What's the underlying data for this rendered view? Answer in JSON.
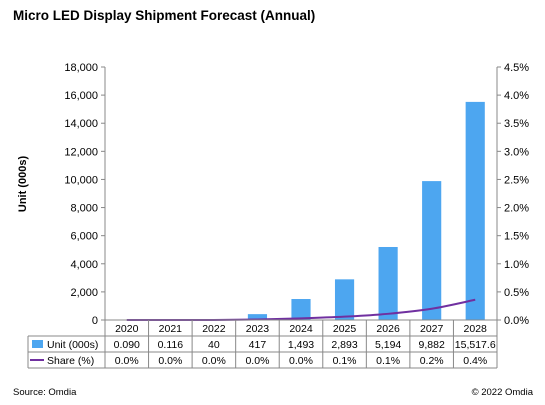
{
  "title": "Micro LED Display Shipment Forecast (Annual)",
  "source": "Source: Omdia",
  "copyright": "© 2022 Omdia",
  "chart_data": {
    "type": "bar",
    "title": "Micro LED Display Shipment Forecast (Annual)",
    "ylabel": "Unit (000s)",
    "categories": [
      "2020",
      "2021",
      "2022",
      "2023",
      "2024",
      "2025",
      "2026",
      "2027",
      "2028"
    ],
    "ylim": [
      0,
      18000
    ],
    "y_ticks": [
      "0",
      "2,000",
      "4,000",
      "6,000",
      "8,000",
      "10,000",
      "12,000",
      "14,000",
      "16,000",
      "18,000"
    ],
    "y2lim": [
      0,
      4.5
    ],
    "y2_ticks": [
      "0.0%",
      "0.5%",
      "1.0%",
      "1.5%",
      "2.0%",
      "2.5%",
      "3.0%",
      "3.5%",
      "4.0%",
      "4.5%"
    ],
    "grid": false,
    "legend": "table-below",
    "series": [
      {
        "name": "Unit (000s)",
        "type": "bar",
        "color": "#4da6f0",
        "values": [
          0.09,
          0.116,
          40,
          417,
          1493,
          2893,
          5194,
          9882,
          15517.6
        ],
        "labels": [
          "0.090",
          "0.116",
          "40",
          "417",
          "1,493",
          "2,893",
          "5,194",
          "9,882",
          "15,517.6"
        ]
      },
      {
        "name": "Share (%)",
        "type": "line",
        "axis": "right",
        "color": "#7030a0",
        "values": [
          0.0,
          0.0,
          0.0,
          0.01,
          0.03,
          0.06,
          0.11,
          0.2,
          0.36
        ],
        "labels": [
          "0.0%",
          "0.0%",
          "0.0%",
          "0.0%",
          "0.0%",
          "0.1%",
          "0.1%",
          "0.2%",
          "0.4%"
        ]
      }
    ]
  }
}
